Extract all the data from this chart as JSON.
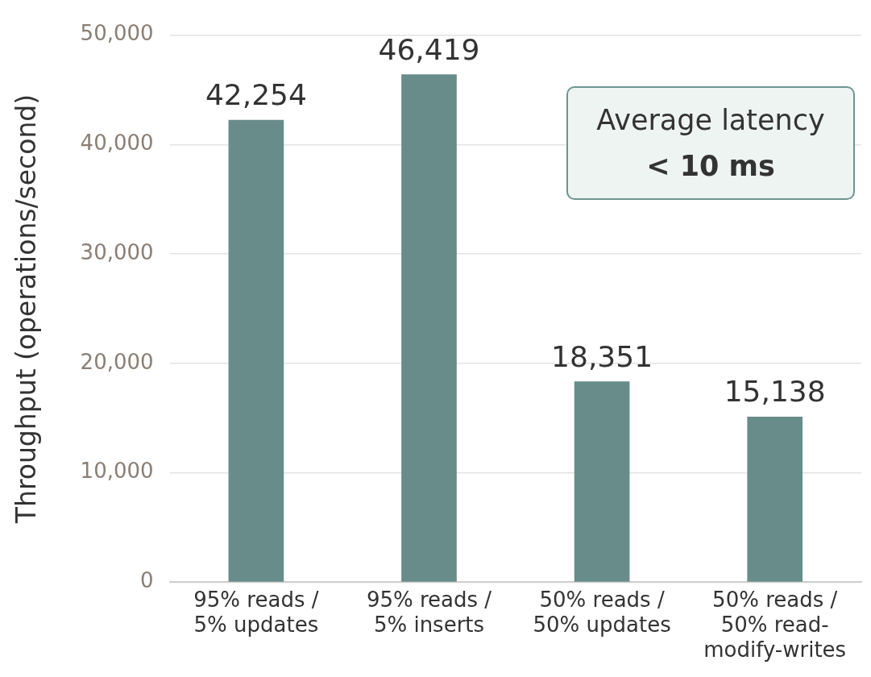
{
  "chart_data": {
    "type": "bar",
    "ylabel": "Throughput (operations/second)",
    "categories": [
      "95% reads / 5% updates",
      "95% reads / 5% inserts",
      "50% reads / 50% updates",
      "50% reads / 50% read-modify-writes"
    ],
    "values": [
      42254,
      46419,
      18351,
      15138
    ],
    "color": "#688c8a",
    "ylim": [
      0,
      50000
    ],
    "yticks": [
      {
        "value": 0,
        "label": "0"
      },
      {
        "value": 10000,
        "label": "10,000"
      },
      {
        "value": 20000,
        "label": "20,000"
      },
      {
        "value": 30000,
        "label": "30,000"
      },
      {
        "value": 40000,
        "label": "40,000"
      },
      {
        "value": 50000,
        "label": "50,000"
      }
    ],
    "value_labels": [
      "42,254",
      "46,419",
      "18,351",
      "15,138"
    ],
    "grid": "y",
    "legend": false,
    "annotations": [
      "Average latency",
      "< 10 ms"
    ]
  }
}
